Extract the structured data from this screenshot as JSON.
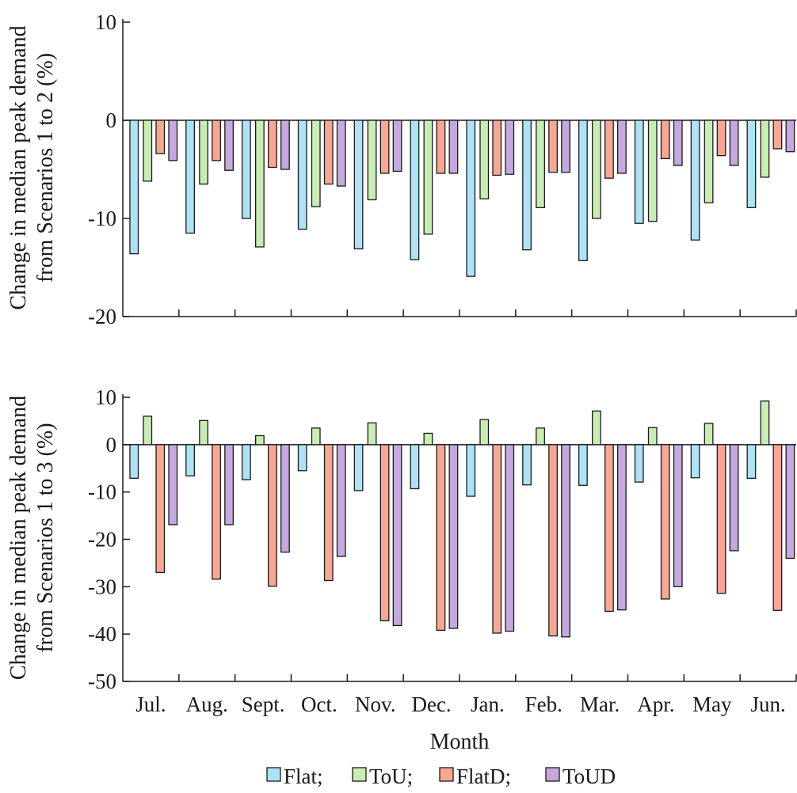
{
  "colors": {
    "Flat": "#aee2f5",
    "ToU": "#c9ecb4",
    "FlatD": "#f6a894",
    "ToUD": "#c5a8de"
  },
  "legend": {
    "items": [
      {
        "label": "Flat;",
        "series": "Flat"
      },
      {
        "label": "ToU;",
        "series": "ToU"
      },
      {
        "label": "FlatD;",
        "series": "FlatD"
      },
      {
        "label": "ToUD",
        "series": "ToUD"
      }
    ],
    "placement": "bottom-center"
  },
  "chart_data": [
    {
      "type": "bar",
      "ylabel_lines": [
        "Change in median peak demand",
        "from Scenarios 1 to 2 (%)"
      ],
      "xlabel": "",
      "ylim": [
        -20,
        10
      ],
      "yticks": [
        10,
        0,
        -10,
        -20
      ],
      "ytick_labels": [
        "10",
        "0",
        "-10",
        "-20"
      ],
      "categories": [
        "Jul.",
        "Aug.",
        "Sept.",
        "Oct.",
        "Nov.",
        "Dec.",
        "Jan.",
        "Feb.",
        "Mar.",
        "Apr.",
        "May",
        "Jun."
      ],
      "show_category_labels": false,
      "series": [
        {
          "key": "Flat",
          "values": [
            -13.6,
            -11.5,
            -10.0,
            -11.1,
            -13.1,
            -14.2,
            -15.9,
            -13.2,
            -14.3,
            -10.5,
            -12.2,
            -8.9
          ]
        },
        {
          "key": "ToU",
          "values": [
            -6.2,
            -6.5,
            -12.9,
            -8.8,
            -8.1,
            -11.6,
            -8.0,
            -8.9,
            -10.0,
            -10.3,
            -8.4,
            -5.8
          ]
        },
        {
          "key": "FlatD",
          "values": [
            -3.4,
            -4.1,
            -4.8,
            -6.5,
            -5.4,
            -5.4,
            -5.6,
            -5.3,
            -5.9,
            -3.9,
            -3.6,
            -2.9
          ]
        },
        {
          "key": "ToUD",
          "values": [
            -4.1,
            -5.1,
            -5.0,
            -6.7,
            -5.2,
            -5.4,
            -5.5,
            -5.3,
            -5.4,
            -4.6,
            -4.6,
            -3.2
          ]
        }
      ]
    },
    {
      "type": "bar",
      "ylabel_lines": [
        "Change in median peak demand",
        "from Scenarios 1 to 3 (%)"
      ],
      "xlabel": "Month",
      "ylim": [
        -50,
        10
      ],
      "yticks": [
        10,
        0,
        -10,
        -20,
        -30,
        -40,
        -50
      ],
      "ytick_labels": [
        "10",
        "0",
        "-10",
        "-20",
        "-30",
        "-40",
        "-50"
      ],
      "categories": [
        "Jul.",
        "Aug.",
        "Sept.",
        "Oct.",
        "Nov.",
        "Dec.",
        "Jan.",
        "Feb.",
        "Mar.",
        "Apr.",
        "May",
        "Jun."
      ],
      "show_category_labels": true,
      "series": [
        {
          "key": "Flat",
          "values": [
            -7.1,
            -6.6,
            -7.4,
            -5.5,
            -9.7,
            -9.3,
            -10.9,
            -8.5,
            -8.6,
            -7.9,
            -7.0,
            -7.1
          ]
        },
        {
          "key": "ToU",
          "values": [
            6.0,
            5.1,
            1.9,
            3.5,
            4.6,
            2.4,
            5.3,
            3.5,
            7.1,
            3.6,
            4.5,
            9.2
          ]
        },
        {
          "key": "FlatD",
          "values": [
            -27.0,
            -28.4,
            -29.9,
            -28.7,
            -37.2,
            -39.2,
            -39.8,
            -40.4,
            -35.2,
            -32.6,
            -31.4,
            -35.0
          ]
        },
        {
          "key": "ToUD",
          "values": [
            -16.9,
            -16.9,
            -22.7,
            -23.6,
            -38.2,
            -38.8,
            -39.4,
            -40.6,
            -34.9,
            -30.0,
            -22.4,
            -24.0
          ]
        }
      ]
    }
  ]
}
